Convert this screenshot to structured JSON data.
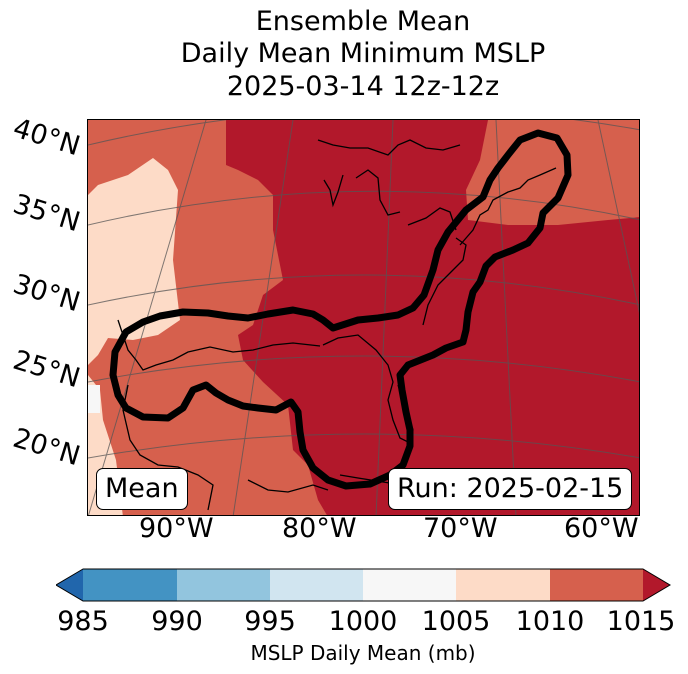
{
  "title": {
    "line1": "Ensemble Mean",
    "line2": "Daily Mean Minimum MSLP",
    "line3": "2025-03-14 12z-12z"
  },
  "map": {
    "lat_labels": [
      "40°N",
      "35°N",
      "30°N",
      "25°N",
      "20°N"
    ],
    "lon_labels": [
      "90°W",
      "80°W",
      "70°W",
      "60°W"
    ],
    "mean_label": "Mean",
    "run_label": "Run: 2025-02-15",
    "region": "Eastern United States, Gulf of Mexico and western Atlantic",
    "contour_color": "#000000"
  },
  "colorbar": {
    "label": "MSLP Daily Mean (mb)",
    "ticks": [
      "985",
      "990",
      "995",
      "1000",
      "1005",
      "1010",
      "1015"
    ],
    "colors": [
      "#2166ac",
      "#4393c3",
      "#92c5de",
      "#d1e5f0",
      "#f7f7f7",
      "#fddbc7",
      "#d6604d",
      "#b2182b"
    ]
  }
}
